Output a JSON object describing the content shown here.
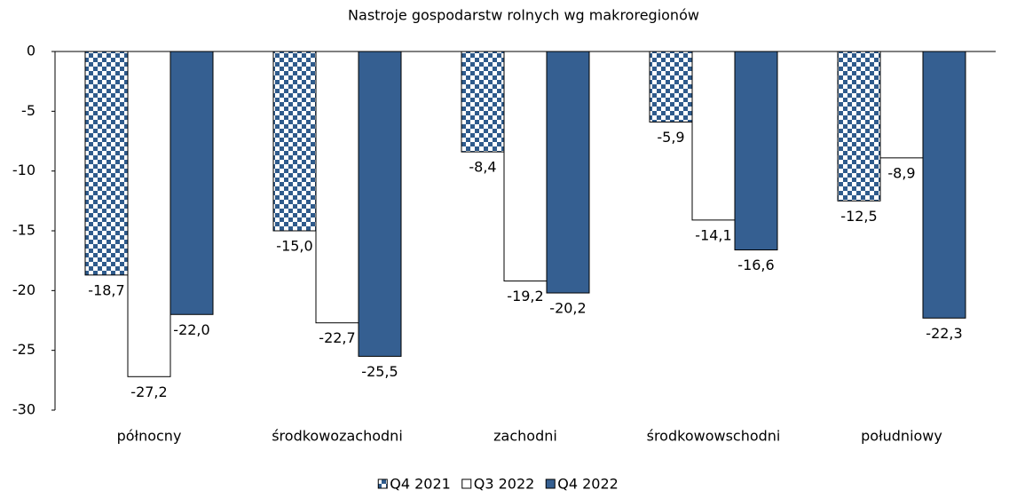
{
  "chart_data": {
    "type": "bar",
    "title": "Nastroje gospodarstw rolnych wg makroregionów",
    "categories": [
      "północny",
      "środkowozachodni",
      "zachodni",
      "środkowowschodni",
      "południowy"
    ],
    "series": [
      {
        "name": "Q4 2021",
        "color": "#2f5b8c",
        "pattern": "checkerboard",
        "values": [
          -18.7,
          -15.0,
          -8.4,
          -5.9,
          -12.5
        ],
        "value_labels": [
          "-18,7",
          "-15,0",
          "-8,4",
          "-5,9",
          "-12,5"
        ]
      },
      {
        "name": "Q3 2022",
        "color": "#ffffff",
        "values": [
          -27.2,
          -22.7,
          -19.2,
          -14.1,
          -8.9
        ],
        "value_labels": [
          "-27,2",
          "-22,7",
          "-19,2",
          "-14,1",
          "-8,9"
        ]
      },
      {
        "name": "Q4 2022",
        "color": "#355f91",
        "values": [
          -22.0,
          -25.5,
          -20.2,
          -16.6,
          -22.3
        ],
        "value_labels": [
          "-22,0",
          "-25,5",
          "-20,2",
          "-16,6",
          "-22,3"
        ]
      }
    ],
    "ylim": [
      -30,
      0
    ],
    "yticks": [
      0,
      -5,
      -10,
      -15,
      -20,
      -25,
      -30
    ],
    "legend": "bottom"
  }
}
